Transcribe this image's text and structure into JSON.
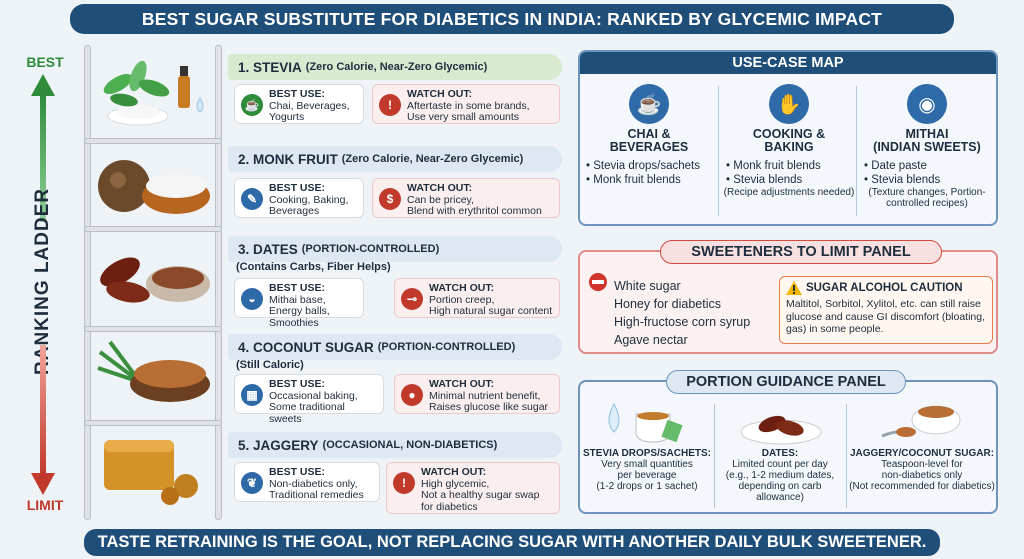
{
  "title": "BEST SUGAR SUBSTITUTE FOR DIABETICS IN INDIA: RANKED BY GLYCEMIC IMPACT",
  "axis": {
    "best": "BEST",
    "limit": "LIMIT",
    "label": "RANKING LADDER"
  },
  "ranks": [
    {
      "name": "1. STEVIA",
      "sub": "(Zero Calorie, Near-Zero Glycemic)",
      "sub2": "",
      "best_label": "BEST USE:",
      "best": [
        "Chai, Beverages,",
        "Yogurts"
      ],
      "watch_label": "WATCH OUT:",
      "watch": [
        "Aftertaste in some brands,",
        "Use very small amounts"
      ]
    },
    {
      "name": "2. MONK FRUIT",
      "sub": "(Zero Calorie, Near-Zero Glycemic)",
      "sub2": "",
      "best_label": "BEST USE:",
      "best": [
        "Cooking, Baking,",
        "Beverages"
      ],
      "watch_label": "WATCH OUT:",
      "watch": [
        "Can be pricey,",
        "Blend with erythritol common"
      ]
    },
    {
      "name": "3. DATES",
      "sub": "(PORTION-CONTROLLED)",
      "sub2": "(Contains Carbs, Fiber Helps)",
      "best_label": "BEST USE:",
      "best": [
        "Mithai base, Energy balls,",
        "Smoothies"
      ],
      "watch_label": "WATCH OUT:",
      "watch": [
        "Portion creep,",
        "High natural sugar content"
      ]
    },
    {
      "name": "4. COCONUT SUGAR",
      "sub": "(PORTION-CONTROLLED)",
      "sub2": "(Still Caloric)",
      "best_label": "BEST USE:",
      "best": [
        "Occasional baking,",
        "Some traditional sweets"
      ],
      "watch_label": "WATCH OUT:",
      "watch": [
        "Minimal nutrient benefit,",
        "Raises glucose like sugar"
      ]
    },
    {
      "name": "5. JAGGERY",
      "sub": "(OCCASIONAL, NON-DIABETICS)",
      "sub2": "",
      "best_label": "BEST USE:",
      "best": [
        "Non-diabetics only,",
        "Traditional remedies"
      ],
      "watch_label": "WATCH OUT:",
      "watch": [
        "High glycemic,",
        "Not a healthy sugar swap",
        "for diabetics"
      ]
    }
  ],
  "use_case": {
    "title": "USE-CASE MAP",
    "cols": [
      {
        "name1": "CHAI &",
        "name2": "BEVERAGES",
        "items": [
          "Stevia drops/sachets",
          "Monk fruit blends"
        ],
        "note": ""
      },
      {
        "name1": "COOKING &",
        "name2": "BAKING",
        "items": [
          "Monk fruit blends",
          "Stevia blends"
        ],
        "note": "(Recipe adjustments needed)"
      },
      {
        "name1": "MITHAI",
        "name2": "(INDIAN SWEETS)",
        "items": [
          "Date paste",
          "Stevia blends"
        ],
        "note": "(Texture changes, Portion-controlled recipes)"
      }
    ]
  },
  "limit": {
    "title": "SWEETENERS TO LIMIT PANEL",
    "items": [
      "White sugar",
      "Honey for diabetics",
      "High-fructose corn syrup",
      "Agave nectar"
    ],
    "caution_title": "SUGAR ALCOHOL CAUTION",
    "caution_text": "Maltitol, Sorbitol, Xylitol, etc. can still raise glucose and cause GI discomfort (bloating, gas) in some people."
  },
  "portion": {
    "title": "PORTION GUIDANCE PANEL",
    "cols": [
      {
        "head": "STEVIA DROPS/SACHETS:",
        "l1": "Very small quantities",
        "l2": "per beverage",
        "l3": "(1-2 drops or 1 sachet)"
      },
      {
        "head": "DATES:",
        "l1": "Limited count per day",
        "l2": "(e.g., 1-2 medium dates,",
        "l3": "depending on carb allowance)"
      },
      {
        "head": "JAGGERY/COCONUT SUGAR:",
        "l1": "Teaspoon-level for",
        "l2": "non-diabetics only",
        "l3": "(Not recommended for diabetics)"
      }
    ]
  },
  "footer": "TASTE RETRAINING IS THE GOAL, NOT REPLACING SUGAR WITH ANOTHER DAILY BULK SWEETENER.",
  "colors": {
    "navy": "#1f4e79",
    "green": "#2e8b3a",
    "red": "#c0392b",
    "blue": "#2f6aa8"
  }
}
